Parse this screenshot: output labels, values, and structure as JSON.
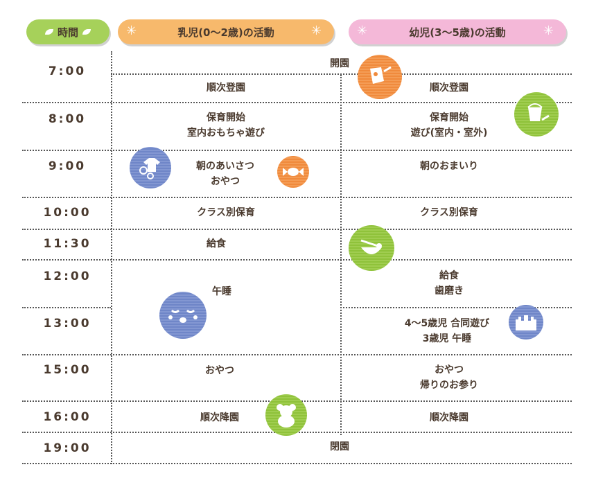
{
  "header": {
    "time_label": "時間",
    "infant_label": "乳児(0〜2歳)の活動",
    "child_label": "幼児(3〜5歳)の活動"
  },
  "times": [
    "7:00",
    "8:00",
    "9:00",
    "10:00",
    "11:30",
    "12:00",
    "13:00",
    "15:00",
    "16:00",
    "19:00"
  ],
  "infant": {
    "arrival": "順次登園",
    "start": [
      "保育開始",
      "室内おもちゃ遊び"
    ],
    "greeting": [
      "朝のあいさつ",
      "おやつ"
    ],
    "class": "クラス別保育",
    "lunch": "給食",
    "nap": "午睡",
    "snack": "おやつ",
    "departure": "順次降園"
  },
  "child": {
    "arrival": "順次登園",
    "start": [
      "保育開始",
      "遊び(室内・室外)"
    ],
    "meeting": "朝のおまいり",
    "class": "クラス別保育",
    "lunch": [
      "給食",
      "歯磨き"
    ],
    "play": [
      "4〜5歳児 合同遊び",
      "3歳児 午睡"
    ],
    "snack": [
      "おやつ",
      "帰りのお参り"
    ],
    "departure": "順次降園"
  },
  "shared": {
    "open": "開園",
    "close": "閉園"
  },
  "icons": {
    "colors": {
      "orange": "#f08a3c",
      "green": "#8fc23a",
      "blue": "#6f86c8"
    },
    "names": [
      "watering-can-icon",
      "bucket-icon",
      "baby-clothes-icon",
      "candy-icon",
      "bowl-icon",
      "sleeping-face-icon",
      "castle-icon",
      "teddy-bear-icon"
    ]
  }
}
